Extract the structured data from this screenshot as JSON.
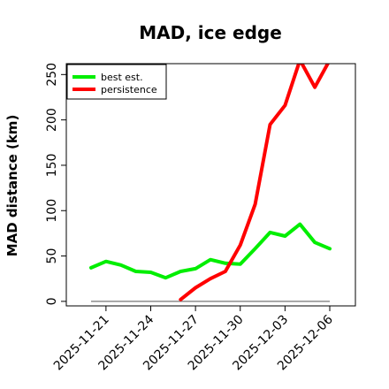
{
  "chart_data": {
    "type": "line",
    "title": "MAD, ice edge",
    "ylabel": "MAD distance (km)",
    "xlabel": "",
    "x": [
      "2025-11-20",
      "2025-11-21",
      "2025-11-22",
      "2025-11-23",
      "2025-11-24",
      "2025-11-25",
      "2025-11-26",
      "2025-11-27",
      "2025-11-28",
      "2025-11-29",
      "2025-11-30",
      "2025-12-01",
      "2025-12-02",
      "2025-12-03",
      "2025-12-04",
      "2025-12-05",
      "2025-12-06"
    ],
    "xticks": [
      "2025-11-21",
      "2025-11-24",
      "2025-11-27",
      "2025-11-30",
      "2025-12-03",
      "2025-12-06"
    ],
    "yticks": [
      0,
      50,
      100,
      150,
      200,
      250
    ],
    "ylim": [
      -5,
      262
    ],
    "grid": false,
    "legend_position": "top-left",
    "series": [
      {
        "name": "best est.",
        "color": "#00ee00",
        "values": [
          37,
          44,
          40,
          33,
          32,
          26,
          33,
          36,
          46,
          42,
          41,
          58,
          76,
          72,
          85,
          65,
          58
        ]
      },
      {
        "name": "persistence",
        "color": "#ff0000",
        "values": [
          null,
          null,
          null,
          null,
          null,
          null,
          2,
          15,
          25,
          33,
          62,
          107,
          195,
          216,
          266,
          236,
          266
        ]
      }
    ],
    "reference_line": {
      "value": 0,
      "color": "#777777"
    }
  }
}
